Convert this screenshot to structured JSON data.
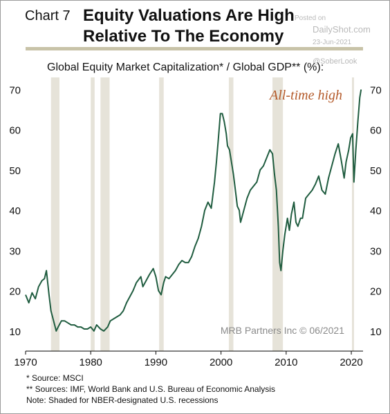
{
  "header": {
    "chart_number": "Chart 7",
    "title": "Equity Valuations Are High\nRelative To The Economy"
  },
  "watermark": {
    "posted_on": "Posted on",
    "site": "DailyShot.com",
    "date": "23-Jun-2021",
    "handle": "@SoberLook"
  },
  "colors": {
    "line": "#1f5c3f",
    "recession_shade": "#e6e3d9",
    "annotation": "#b45a2a",
    "rule": "#c8c3a8"
  },
  "footnotes": {
    "source": "*  Source: MSCI",
    "sources2": "** Sources: IMF, World Bank and U.S. Bureau of Economic Analysis",
    "note": "Note: Shaded for NBER-designated U.S. recessions"
  },
  "chart_data": {
    "type": "line",
    "title": "Global Equity Market Capitalization* / Global GDP** (%):",
    "annotation": "All-time high",
    "credit": "MRB Partners Inc © 06/2021",
    "xlim": [
      1970,
      2021.8
    ],
    "ylim": [
      5,
      73
    ],
    "x_ticks": [
      1970,
      1980,
      1990,
      2000,
      2010,
      2020
    ],
    "y_ticks": [
      10,
      20,
      30,
      40,
      50,
      60,
      70
    ],
    "recessions": [
      [
        1973.9,
        1975.2
      ],
      [
        1980.0,
        1980.6
      ],
      [
        1981.5,
        1982.9
      ],
      [
        1990.5,
        1991.2
      ],
      [
        2001.2,
        2001.9
      ],
      [
        2007.9,
        2009.5
      ],
      [
        2020.1,
        2020.4
      ]
    ],
    "series": [
      {
        "x": [
          1970.0,
          1970.5,
          1971.0,
          1971.5,
          1972.0,
          1972.5,
          1972.9,
          1973.2,
          1973.6,
          1973.9,
          1974.3,
          1974.7,
          1975.0,
          1975.5,
          1976.0,
          1976.5,
          1977.0,
          1977.5,
          1978.0,
          1978.5,
          1979.0,
          1979.5,
          1980.0,
          1980.5,
          1980.9,
          1981.5,
          1982.0,
          1982.6,
          1983.0,
          1983.5,
          1984.0,
          1984.5,
          1985.0,
          1985.5,
          1986.0,
          1986.5,
          1987.0,
          1987.7,
          1988.0,
          1988.5,
          1989.0,
          1989.6,
          1990.0,
          1990.4,
          1990.8,
          1991.2,
          1991.5,
          1992.0,
          1992.5,
          1993.0,
          1993.5,
          1994.0,
          1994.5,
          1995.0,
          1995.5,
          1996.0,
          1996.5,
          1997.0,
          1997.5,
          1998.0,
          1998.5,
          1999.0,
          1999.3,
          1999.6,
          1999.9,
          2000.2,
          2000.5,
          2000.8,
          2001.0,
          2001.3,
          2001.6,
          2001.9,
          2002.2,
          2002.5,
          2002.8,
          2003.0,
          2003.5,
          2004.0,
          2004.5,
          2005.0,
          2005.5,
          2006.0,
          2006.5,
          2007.0,
          2007.5,
          2007.9,
          2008.2,
          2008.5,
          2008.8,
          2009.0,
          2009.2,
          2009.5,
          2009.8,
          2010.2,
          2010.5,
          2010.8,
          2011.2,
          2011.5,
          2011.8,
          2012.2,
          2012.5,
          2013.0,
          2013.5,
          2014.0,
          2014.5,
          2015.0,
          2015.5,
          2016.0,
          2016.5,
          2017.0,
          2017.5,
          2018.0,
          2018.5,
          2018.9,
          2019.2,
          2019.6,
          2019.9,
          2020.2,
          2020.4,
          2020.7,
          2021.0,
          2021.3,
          2021.5
        ],
        "y": [
          19.0,
          17.0,
          19.5,
          18.0,
          21.0,
          22.5,
          23.0,
          25.0,
          19.0,
          15.0,
          12.5,
          10.0,
          11.0,
          12.5,
          12.5,
          12.0,
          11.5,
          11.5,
          11.0,
          11.0,
          10.5,
          10.5,
          11.0,
          10.0,
          11.5,
          10.5,
          10.0,
          11.0,
          12.5,
          13.0,
          13.5,
          14.0,
          15.0,
          17.0,
          18.5,
          20.0,
          22.0,
          23.5,
          21.0,
          22.5,
          24.0,
          25.5,
          23.5,
          20.0,
          19.0,
          22.0,
          23.5,
          23.0,
          24.0,
          25.0,
          26.5,
          27.5,
          27.0,
          27.0,
          28.5,
          31.0,
          33.0,
          36.0,
          40.0,
          42.0,
          40.5,
          47.0,
          52.0,
          58.0,
          64.0,
          64.0,
          62.0,
          59.0,
          56.0,
          55.0,
          52.0,
          49.0,
          45.0,
          41.0,
          40.0,
          37.0,
          40.0,
          43.0,
          45.0,
          46.0,
          47.0,
          50.0,
          51.0,
          53.0,
          55.0,
          54.0,
          49.0,
          45.0,
          36.0,
          27.0,
          25.0,
          30.0,
          34.0,
          38.0,
          35.0,
          39.0,
          42.0,
          37.0,
          36.0,
          38.0,
          38.0,
          43.0,
          44.0,
          45.0,
          46.5,
          48.5,
          45.0,
          44.0,
          48.0,
          51.0,
          54.0,
          56.5,
          52.0,
          48.0,
          52.0,
          55.0,
          58.0,
          59.0,
          47.0,
          55.0,
          62.0,
          68.0,
          70.0
        ]
      }
    ]
  }
}
